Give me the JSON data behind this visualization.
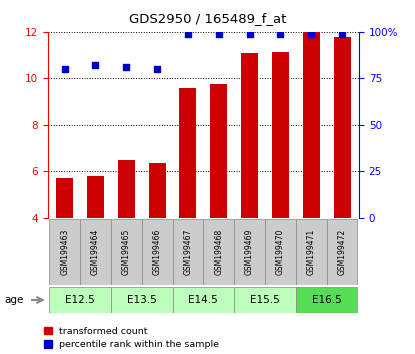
{
  "title": "GDS2950 / 165489_f_at",
  "samples": [
    "GSM199463",
    "GSM199464",
    "GSM199465",
    "GSM199466",
    "GSM199467",
    "GSM199468",
    "GSM199469",
    "GSM199470",
    "GSM199471",
    "GSM199472"
  ],
  "red_values": [
    5.7,
    5.8,
    6.5,
    6.35,
    9.6,
    9.75,
    11.1,
    11.15,
    12.0,
    11.8
  ],
  "blue_pct": [
    80,
    82,
    81,
    80,
    99,
    99,
    99,
    99,
    99,
    99
  ],
  "age_groups": [
    {
      "label": "E12.5",
      "start": 0,
      "end": 1
    },
    {
      "label": "E13.5",
      "start": 2,
      "end": 3
    },
    {
      "label": "E14.5",
      "start": 4,
      "end": 5
    },
    {
      "label": "E15.5",
      "start": 6,
      "end": 7
    },
    {
      "label": "E16.5",
      "start": 8,
      "end": 9
    }
  ],
  "ylim_left": [
    4,
    12
  ],
  "ylim_right": [
    0,
    100
  ],
  "yticks_left": [
    4,
    6,
    8,
    10,
    12
  ],
  "yticks_right": [
    0,
    25,
    50,
    75,
    100
  ],
  "ytick_labels_right": [
    "0",
    "25",
    "50",
    "75",
    "100%"
  ],
  "bar_color": "#cc0000",
  "dot_color": "#0000cc",
  "sample_box_color": "#cccccc",
  "age_box_colors": [
    "#bbffbb",
    "#bbffbb",
    "#bbffbb",
    "#bbffbb",
    "#55dd55"
  ],
  "age_label_color": "#55dd55"
}
